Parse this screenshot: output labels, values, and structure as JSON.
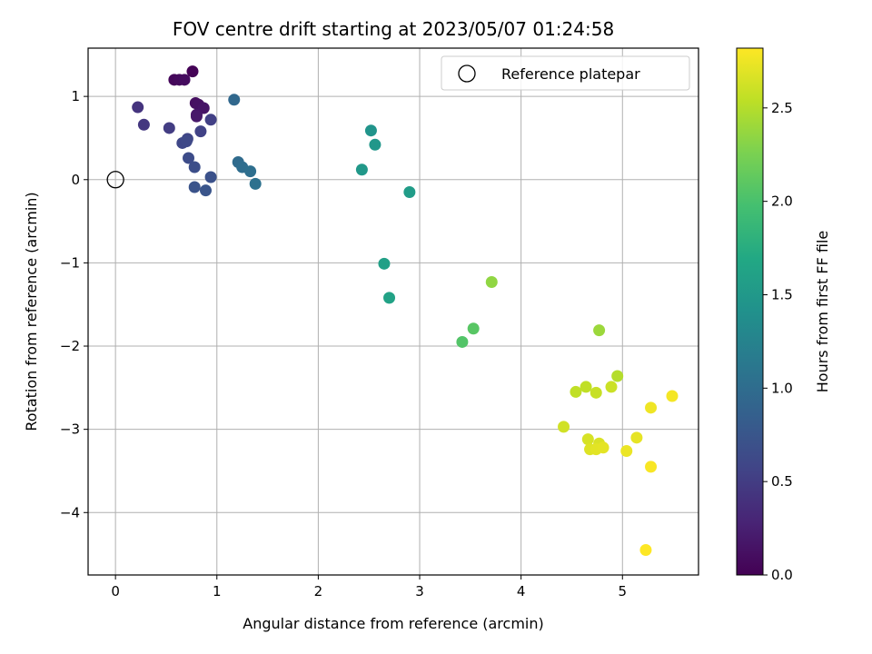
{
  "chart_data": {
    "type": "scatter",
    "title": "FOV centre drift starting at 2023/05/07 01:24:58",
    "xlabel": "Angular distance from reference (arcmin)",
    "ylabel": "Rotation from reference (arcmin)",
    "xlim": [
      -0.27,
      5.75
    ],
    "ylim": [
      -4.75,
      1.58
    ],
    "xticks": [
      0,
      1,
      2,
      3,
      4,
      5
    ],
    "yticks": [
      -4,
      -3,
      -2,
      -1,
      0,
      1
    ],
    "grid": true,
    "legend": {
      "position": "upper-right",
      "entries": [
        "Reference platepar"
      ]
    },
    "reference_point": {
      "x": 0,
      "y": 0
    },
    "colorbar": {
      "label": "Hours from first FF file",
      "colormap": "viridis",
      "range": [
        0.0,
        2.82
      ],
      "ticks": [
        0.0,
        0.5,
        1.0,
        1.5,
        2.0,
        2.5
      ]
    },
    "points": [
      {
        "x": 0.76,
        "y": 1.3,
        "c": 0.02
      },
      {
        "x": 0.58,
        "y": 1.2,
        "c": 0.05
      },
      {
        "x": 0.63,
        "y": 1.2,
        "c": 0.07
      },
      {
        "x": 0.68,
        "y": 1.2,
        "c": 0.09
      },
      {
        "x": 0.79,
        "y": 0.92,
        "c": 0.11
      },
      {
        "x": 0.82,
        "y": 0.9,
        "c": 0.13
      },
      {
        "x": 0.87,
        "y": 0.86,
        "c": 0.15
      },
      {
        "x": 0.8,
        "y": 0.78,
        "c": 0.17
      },
      {
        "x": 0.8,
        "y": 0.76,
        "c": 0.19
      },
      {
        "x": 0.22,
        "y": 0.87,
        "c": 0.42
      },
      {
        "x": 0.28,
        "y": 0.66,
        "c": 0.45
      },
      {
        "x": 0.53,
        "y": 0.62,
        "c": 0.5
      },
      {
        "x": 0.94,
        "y": 0.72,
        "c": 0.53
      },
      {
        "x": 0.84,
        "y": 0.58,
        "c": 0.55
      },
      {
        "x": 0.71,
        "y": 0.49,
        "c": 0.58
      },
      {
        "x": 0.66,
        "y": 0.44,
        "c": 0.6
      },
      {
        "x": 0.7,
        "y": 0.46,
        "c": 0.62
      },
      {
        "x": 0.72,
        "y": 0.26,
        "c": 0.65
      },
      {
        "x": 0.78,
        "y": 0.15,
        "c": 0.67
      },
      {
        "x": 0.94,
        "y": 0.03,
        "c": 0.7
      },
      {
        "x": 0.78,
        "y": -0.09,
        "c": 0.72
      },
      {
        "x": 0.89,
        "y": -0.13,
        "c": 0.74
      },
      {
        "x": 1.17,
        "y": 0.96,
        "c": 0.95
      },
      {
        "x": 1.21,
        "y": 0.21,
        "c": 0.98
      },
      {
        "x": 1.25,
        "y": 0.15,
        "c": 1.0
      },
      {
        "x": 1.33,
        "y": 0.1,
        "c": 1.03
      },
      {
        "x": 1.38,
        "y": -0.05,
        "c": 1.05
      },
      {
        "x": 2.52,
        "y": 0.59,
        "c": 1.45
      },
      {
        "x": 2.56,
        "y": 0.42,
        "c": 1.48
      },
      {
        "x": 2.43,
        "y": 0.12,
        "c": 1.5
      },
      {
        "x": 2.9,
        "y": -0.15,
        "c": 1.55
      },
      {
        "x": 2.65,
        "y": -1.01,
        "c": 1.6
      },
      {
        "x": 2.7,
        "y": -1.42,
        "c": 1.62
      },
      {
        "x": 3.42,
        "y": -1.95,
        "c": 2.05
      },
      {
        "x": 3.53,
        "y": -1.79,
        "c": 2.08
      },
      {
        "x": 3.71,
        "y": -1.23,
        "c": 2.35
      },
      {
        "x": 4.77,
        "y": -1.81,
        "c": 2.4
      },
      {
        "x": 4.95,
        "y": -2.36,
        "c": 2.5
      },
      {
        "x": 4.54,
        "y": -2.55,
        "c": 2.55
      },
      {
        "x": 4.64,
        "y": -2.49,
        "c": 2.55
      },
      {
        "x": 4.74,
        "y": -2.56,
        "c": 2.58
      },
      {
        "x": 4.89,
        "y": -2.49,
        "c": 2.6
      },
      {
        "x": 4.42,
        "y": -2.97,
        "c": 2.62
      },
      {
        "x": 4.66,
        "y": -3.12,
        "c": 2.65
      },
      {
        "x": 4.77,
        "y": -3.17,
        "c": 2.66
      },
      {
        "x": 4.68,
        "y": -3.24,
        "c": 2.68
      },
      {
        "x": 4.74,
        "y": -3.24,
        "c": 2.7
      },
      {
        "x": 4.81,
        "y": -3.22,
        "c": 2.71
      },
      {
        "x": 5.14,
        "y": -3.1,
        "c": 2.72
      },
      {
        "x": 5.04,
        "y": -3.26,
        "c": 2.74
      },
      {
        "x": 5.28,
        "y": -2.74,
        "c": 2.76
      },
      {
        "x": 5.49,
        "y": -2.6,
        "c": 2.78
      },
      {
        "x": 5.28,
        "y": -3.45,
        "c": 2.8
      },
      {
        "x": 5.23,
        "y": -4.45,
        "c": 2.82
      }
    ]
  }
}
